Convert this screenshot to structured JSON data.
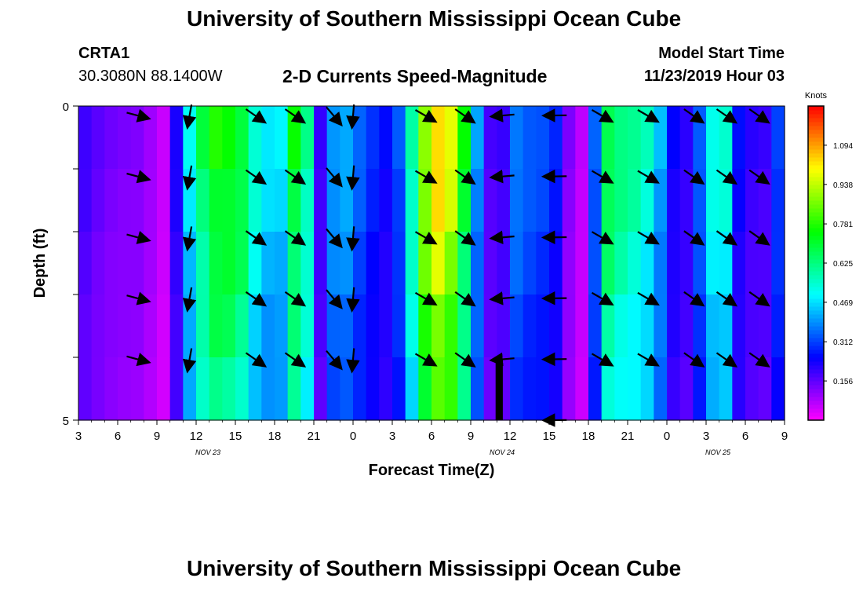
{
  "header": {
    "title": "University of Southern Mississippi Ocean Cube",
    "station_id": "CRTA1",
    "station_coords": "30.3080N 88.1400W",
    "plot_title": "2-D Currents Speed-Magnitude",
    "model_start_label": "Model Start Time",
    "model_start_value": "11/23/2019 Hour 03"
  },
  "footer": {
    "title": "University of Southern Mississippi Ocean Cube"
  },
  "chart_data": {
    "type": "heatmap",
    "title": "2-D Currents Speed-Magnitude",
    "xlabel": "Forecast Time(Z)",
    "ylabel": "Depth (ft)",
    "colorbar_label": "Knots",
    "x_ticks": [
      "3",
      "6",
      "9",
      "12",
      "15",
      "18",
      "21",
      "0",
      "3",
      "6",
      "9",
      "12",
      "15",
      "18",
      "21",
      "0",
      "3",
      "6",
      "9"
    ],
    "date_labels": [
      {
        "text": "NOV 23",
        "tick_index": 3.3
      },
      {
        "text": "NOV 24",
        "tick_index": 10.8
      },
      {
        "text": "NOV 25",
        "tick_index": 16.3
      }
    ],
    "y_ticks": [
      "0",
      "5"
    ],
    "ylim": [
      0,
      5
    ],
    "hours": 54,
    "depth_rows": 5,
    "colorbar_ticks": [
      "0.156",
      "0.312",
      "0.469",
      "0.625",
      "0.781",
      "0.938",
      "1.094"
    ],
    "colorbar_range": [
      0.0,
      1.25
    ],
    "speed_profile_knots": [
      0.19,
      0.16,
      0.14,
      0.13,
      0.13,
      0.12,
      0.06,
      0.05,
      0.39,
      0.57,
      0.72,
      0.79,
      0.76,
      0.71,
      0.55,
      0.48,
      0.45,
      0.72,
      0.78,
      0.12,
      0.37,
      0.47,
      0.38,
      0.32,
      0.27,
      0.24,
      0.36,
      0.64,
      0.94,
      1.06,
      0.99,
      0.78,
      0.45,
      0.22,
      0.09,
      0.39,
      0.37,
      0.32,
      0.33,
      0.25,
      0.08,
      0.06,
      0.39,
      0.71,
      0.64,
      0.61,
      0.57,
      0.47,
      0.29,
      0.16,
      0.29,
      0.42,
      0.62,
      0.5,
      0.15,
      0.22,
      0.19,
      0.33,
      0.28
    ],
    "arrow_columns_hours": [
      4.5,
      8.5,
      13.5,
      16.5,
      19.5,
      21,
      26.5,
      29.5,
      32.5,
      36.5,
      40,
      43.5,
      47,
      49.5,
      52
    ],
    "arrow_directions_deg": [
      -15,
      -100,
      -35,
      -35,
      -50,
      -95,
      -30,
      -35,
      -175,
      -179,
      -30,
      -30,
      -35,
      -35,
      -35
    ]
  }
}
